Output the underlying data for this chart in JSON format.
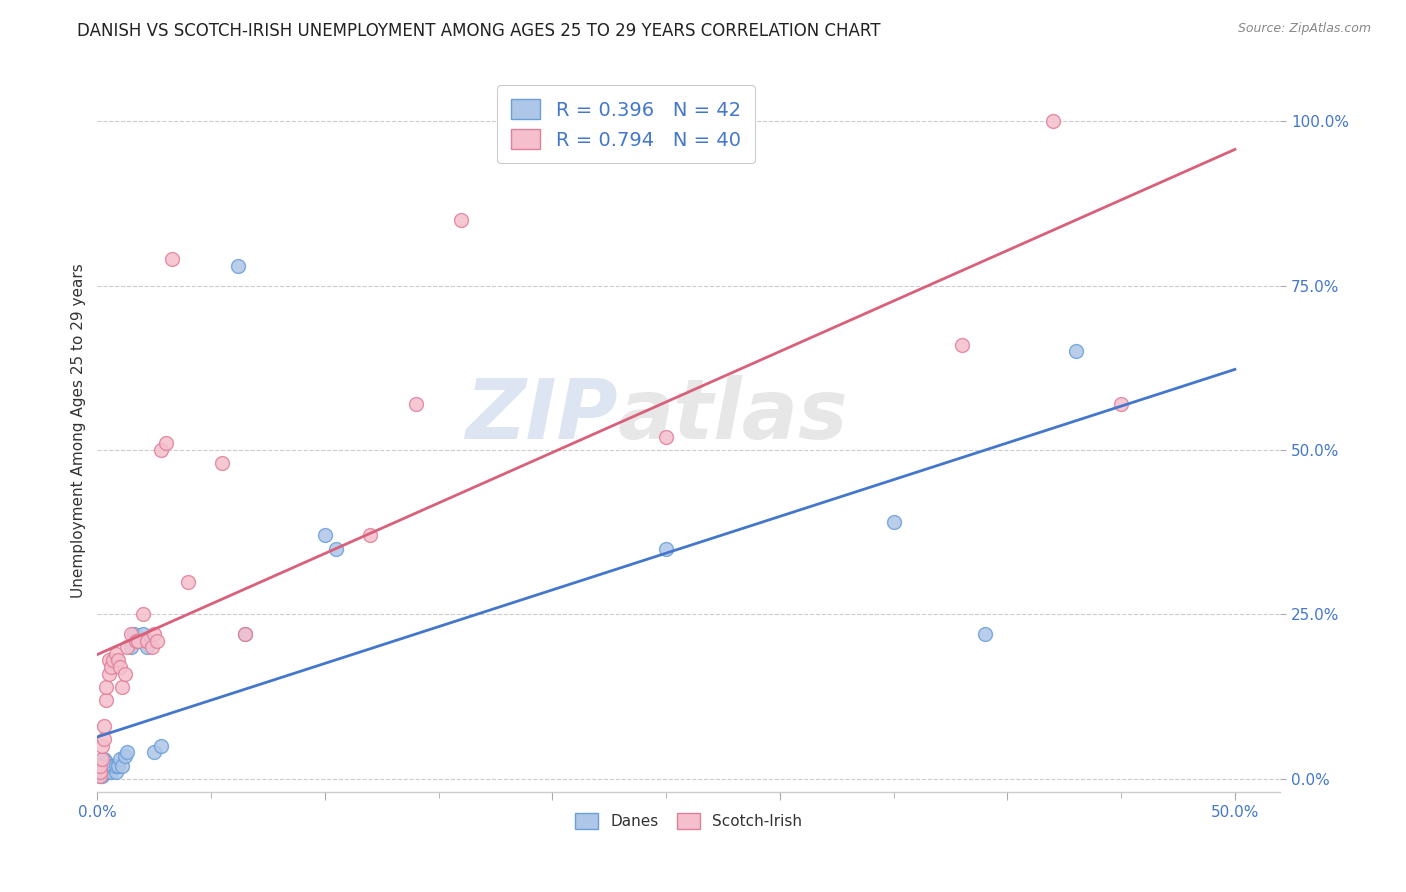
{
  "title": "DANISH VS SCOTCH-IRISH UNEMPLOYMENT AMONG AGES 25 TO 29 YEARS CORRELATION CHART",
  "source": "Source: ZipAtlas.com",
  "ylabel": "Unemployment Among Ages 25 to 29 years",
  "yticks_labels": [
    "0.0%",
    "25.0%",
    "50.0%",
    "75.0%",
    "100.0%"
  ],
  "ytick_vals": [
    0.0,
    0.25,
    0.5,
    0.75,
    1.0
  ],
  "xtick_labels": [
    "0.0%",
    "50.0%"
  ],
  "xtick_vals": [
    0.0,
    0.5
  ],
  "xlim": [
    0.0,
    0.52
  ],
  "ylim": [
    -0.02,
    1.08
  ],
  "danes_color": "#aec6e8",
  "danes_edge": "#6a9fd8",
  "scotch_color": "#f5bfcd",
  "scotch_edge": "#e08098",
  "danes_R": "0.396",
  "danes_N": "42",
  "scotch_R": "0.794",
  "scotch_N": "40",
  "line_danish_color": "#4477cc",
  "line_scotch_color": "#d9607a",
  "danes_x": [
    0.001,
    0.001,
    0.001,
    0.002,
    0.002,
    0.002,
    0.002,
    0.003,
    0.003,
    0.003,
    0.003,
    0.004,
    0.004,
    0.004,
    0.004,
    0.005,
    0.005,
    0.006,
    0.006,
    0.007,
    0.008,
    0.008,
    0.009,
    0.01,
    0.011,
    0.012,
    0.013,
    0.015,
    0.016,
    0.018,
    0.02,
    0.022,
    0.025,
    0.028,
    0.062,
    0.065,
    0.1,
    0.105,
    0.25,
    0.35,
    0.39,
    0.43
  ],
  "danes_y": [
    0.005,
    0.01,
    0.015,
    0.005,
    0.01,
    0.015,
    0.02,
    0.01,
    0.015,
    0.02,
    0.03,
    0.01,
    0.015,
    0.02,
    0.025,
    0.01,
    0.02,
    0.01,
    0.02,
    0.02,
    0.01,
    0.02,
    0.02,
    0.03,
    0.02,
    0.035,
    0.04,
    0.2,
    0.22,
    0.21,
    0.22,
    0.2,
    0.04,
    0.05,
    0.78,
    0.22,
    0.37,
    0.35,
    0.35,
    0.39,
    0.22,
    0.65
  ],
  "scotch_x": [
    0.001,
    0.001,
    0.001,
    0.002,
    0.002,
    0.003,
    0.003,
    0.004,
    0.004,
    0.005,
    0.005,
    0.006,
    0.007,
    0.008,
    0.009,
    0.01,
    0.011,
    0.012,
    0.013,
    0.015,
    0.017,
    0.018,
    0.02,
    0.022,
    0.024,
    0.025,
    0.026,
    0.028,
    0.03,
    0.033,
    0.04,
    0.055,
    0.065,
    0.12,
    0.14,
    0.16,
    0.25,
    0.38,
    0.42,
    0.45
  ],
  "scotch_y": [
    0.005,
    0.01,
    0.02,
    0.03,
    0.05,
    0.06,
    0.08,
    0.12,
    0.14,
    0.16,
    0.18,
    0.17,
    0.18,
    0.19,
    0.18,
    0.17,
    0.14,
    0.16,
    0.2,
    0.22,
    0.21,
    0.21,
    0.25,
    0.21,
    0.2,
    0.22,
    0.21,
    0.5,
    0.51,
    0.79,
    0.3,
    0.48,
    0.22,
    0.37,
    0.57,
    0.85,
    0.52,
    0.66,
    1.0,
    0.57
  ],
  "watermark_zip": "ZIP",
  "watermark_atlas": "atlas",
  "marker_size": 100,
  "title_fontsize": 12,
  "axis_label_fontsize": 11,
  "tick_fontsize": 11,
  "legend_fontsize": 14
}
